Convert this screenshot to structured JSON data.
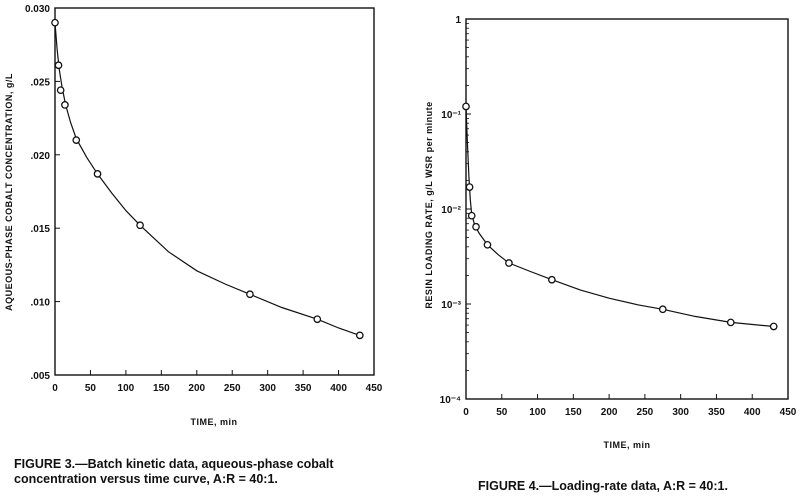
{
  "chart_data": [
    {
      "type": "scatter",
      "xlabel": "TIME, min",
      "ylabel": "AQUEOUS-PHASE COBALT CONCENTRATION, g/L",
      "xlim": [
        0,
        450
      ],
      "ylim": [
        0.005,
        0.03
      ],
      "xticks": [
        0,
        50,
        100,
        150,
        200,
        250,
        300,
        350,
        400,
        450
      ],
      "xtick_labels": [
        "0",
        "50",
        "100",
        "150",
        "200",
        "250",
        "300",
        "350",
        "400",
        "450"
      ],
      "yticks": [
        0.005,
        0.01,
        0.015,
        0.02,
        0.025,
        0.03
      ],
      "ytick_labels": [
        ".005",
        ".010",
        ".015",
        ".020",
        ".025",
        "0.030"
      ],
      "grid": false,
      "series": [
        {
          "x": [
            0,
            5,
            8,
            14,
            30,
            60,
            120,
            275,
            370,
            430
          ],
          "y": [
            0.029,
            0.0261,
            0.0244,
            0.0234,
            0.021,
            0.0187,
            0.0152,
            0.0105,
            0.0088,
            0.0077
          ],
          "curve": [
            [
              0,
              0.029
            ],
            [
              3,
              0.0272
            ],
            [
              6,
              0.0258
            ],
            [
              10,
              0.0246
            ],
            [
              15,
              0.0234
            ],
            [
              22,
              0.0222
            ],
            [
              30,
              0.0211
            ],
            [
              45,
              0.0198
            ],
            [
              60,
              0.0187
            ],
            [
              80,
              0.0174
            ],
            [
              100,
              0.0162
            ],
            [
              120,
              0.0152
            ],
            [
              160,
              0.0134
            ],
            [
              200,
              0.0121
            ],
            [
              240,
              0.0112
            ],
            [
              275,
              0.0105
            ],
            [
              320,
              0.0096
            ],
            [
              370,
              0.0088
            ],
            [
              400,
              0.0082
            ],
            [
              430,
              0.0077
            ]
          ]
        }
      ],
      "caption": "FIGURE 3.—Batch kinetic data, aqueous-phase cobalt concentration versus time curve, A:R = 40:1."
    },
    {
      "type": "scatter",
      "xlabel": "TIME, min",
      "ylabel": "RESIN LOADING RATE, g/L WSR per minute",
      "xlim": [
        0,
        450
      ],
      "ylim": [
        0.0001,
        1
      ],
      "yscale": "log",
      "xticks": [
        0,
        50,
        100,
        150,
        200,
        250,
        300,
        350,
        400,
        450
      ],
      "xtick_labels": [
        "0",
        "50",
        "100",
        "150",
        "200",
        "250",
        "300",
        "350",
        "400",
        "450"
      ],
      "yticks": [
        0.0001,
        0.001,
        0.01,
        0.1,
        1
      ],
      "ytick_labels": [
        "10⁻⁴",
        "10⁻³",
        "10⁻²",
        "10⁻¹",
        "1"
      ],
      "grid": false,
      "series": [
        {
          "x": [
            0,
            5,
            8,
            14,
            30,
            60,
            120,
            275,
            370,
            430
          ],
          "y": [
            0.12,
            0.017,
            0.0085,
            0.0065,
            0.0042,
            0.0027,
            0.0018,
            0.00088,
            0.00064,
            0.00058
          ],
          "curve": [
            [
              0,
              0.12
            ],
            [
              2,
              0.05
            ],
            [
              4,
              0.022
            ],
            [
              6,
              0.0125
            ],
            [
              8,
              0.0088
            ],
            [
              12,
              0.0068
            ],
            [
              18,
              0.0056
            ],
            [
              30,
              0.0042
            ],
            [
              45,
              0.0033
            ],
            [
              60,
              0.0027
            ],
            [
              90,
              0.0022
            ],
            [
              120,
              0.0018
            ],
            [
              160,
              0.0014
            ],
            [
              200,
              0.00115
            ],
            [
              240,
              0.00098
            ],
            [
              275,
              0.00088
            ],
            [
              320,
              0.00074
            ],
            [
              370,
              0.00064
            ],
            [
              430,
              0.00058
            ]
          ]
        }
      ],
      "caption": "FIGURE 4.—Loading-rate data, A:R = 40:1."
    }
  ]
}
